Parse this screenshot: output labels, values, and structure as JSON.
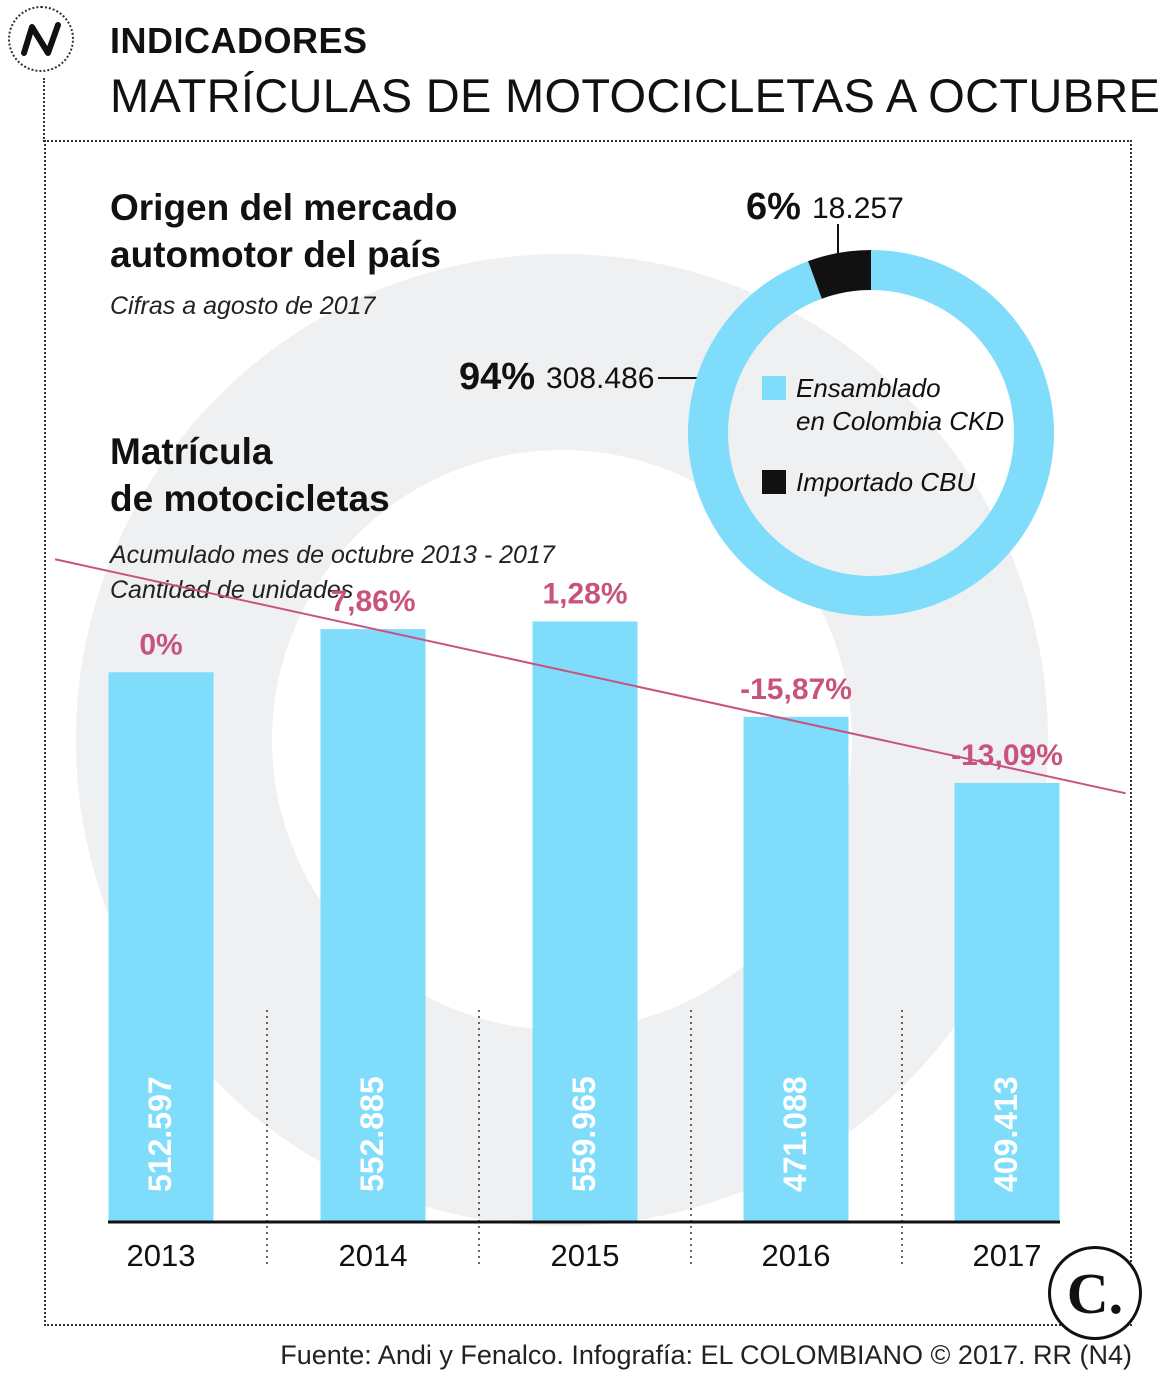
{
  "header": {
    "section_label": "INDICADORES",
    "title": "MATRÍCULAS DE MOTOCICLETAS A OCTUBRE"
  },
  "donut": {
    "title_line1": "Origen del mercado",
    "title_line2": "automotor del país",
    "note": "Cifras a agosto de 2017"
  },
  "bars": {
    "title_line1": "Matrícula",
    "title_line2": "de motocicletas",
    "note_line1": "Acumulado mes de octubre 2013 - 2017",
    "note_line2": "Cantidad de unidades"
  },
  "footer": {
    "source": "Fuente: Andi y Fenalco. Infografía: EL COLOMBIANO © 2017. RR (N4)",
    "brand_mark": "C."
  },
  "colors": {
    "bar": "#7fdcfb",
    "cbu": "#111111",
    "growth": "#c8547e",
    "watermark": "#eef0f2",
    "trend": "#c8547e"
  },
  "chart_data": [
    {
      "type": "pie",
      "title": "Origen del mercado automotor del país",
      "subtitle": "Cifras a agosto de 2017",
      "slices": [
        {
          "label": "Ensamblado en Colombia CKD",
          "legend_line1": "Ensamblado",
          "legend_line2": "en Colombia CKD",
          "percent_label": "94%",
          "value_label": "308.486",
          "value": 308486,
          "percent": 94
        },
        {
          "label": "Importado CBU",
          "legend_line1": "Importado CBU",
          "legend_line2": "",
          "percent_label": "6%",
          "value_label": "18.257",
          "value": 18257,
          "percent": 6
        }
      ]
    },
    {
      "type": "bar",
      "title": "Matrícula de motocicletas",
      "subtitle": "Acumulado mes de octubre 2013 - 2017",
      "ylabel": "Cantidad de unidades",
      "categories": [
        "2013",
        "2014",
        "2015",
        "2016",
        "2017"
      ],
      "values": [
        512597,
        552885,
        559965,
        471088,
        409413
      ],
      "value_labels": [
        "512.597",
        "552.885",
        "559.965",
        "471.088",
        "409.413"
      ],
      "growth_labels": [
        "0%",
        "7,86%",
        "1,28%",
        "-15,87%",
        "-13,09%"
      ],
      "ylim": [
        0,
        580000
      ],
      "trendline": true,
      "grid": false
    }
  ]
}
